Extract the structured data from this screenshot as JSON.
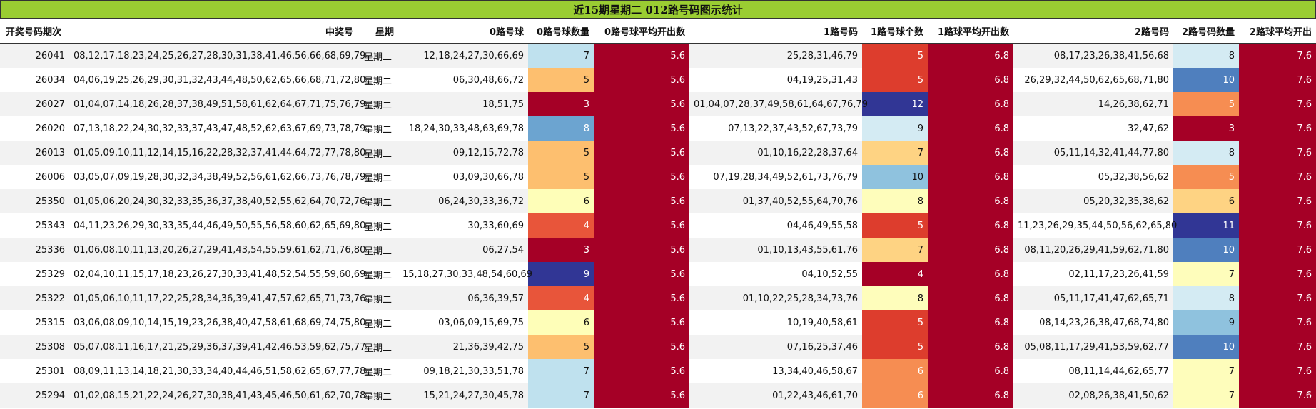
{
  "title": "近15期星期二 012路号码图示统计",
  "headers": [
    "开奖号码期次",
    "中奖号",
    "星期",
    "0路号球",
    "0路号球数量",
    "0路号球平均开出数",
    "1路号码",
    "1路号球个数",
    "1路球平均开出数",
    "2路号码",
    "2路号码数量",
    "2路球平均开出"
  ],
  "rows": [
    {
      "period": "26041",
      "numbers": "08,12,17,18,23,24,25,26,27,28,30,31,38,41,46,56,66,68,69,79",
      "weekday": "星期二",
      "r0": "12,18,24,27,30,66,69",
      "c0": 7,
      "a0": "5.6",
      "r1": "25,28,31,46,79",
      "c1": 5,
      "a1": "6.8",
      "r2": "08,17,23,26,38,41,56,68",
      "c2": 8,
      "a2": "7.6"
    },
    {
      "period": "26034",
      "numbers": "04,06,19,25,26,29,30,31,32,43,44,48,50,62,65,66,68,71,72,80",
      "weekday": "星期二",
      "r0": "06,30,48,66,72",
      "c0": 5,
      "a0": "5.6",
      "r1": "04,19,25,31,43",
      "c1": 5,
      "a1": "6.8",
      "r2": "26,29,32,44,50,62,65,68,71,80",
      "c2": 10,
      "a2": "7.6"
    },
    {
      "period": "26027",
      "numbers": "01,04,07,14,18,26,28,37,38,49,51,58,61,62,64,67,71,75,76,79",
      "weekday": "星期二",
      "r0": "18,51,75",
      "c0": 3,
      "a0": "5.6",
      "r1": "01,04,07,28,37,49,58,61,64,67,76,79",
      "c1": 12,
      "a1": "6.8",
      "r2": "14,26,38,62,71",
      "c2": 5,
      "a2": "7.6"
    },
    {
      "period": "26020",
      "numbers": "07,13,18,22,24,30,32,33,37,43,47,48,52,62,63,67,69,73,78,79",
      "weekday": "星期二",
      "r0": "18,24,30,33,48,63,69,78",
      "c0": 8,
      "a0": "5.6",
      "r1": "07,13,22,37,43,52,67,73,79",
      "c1": 9,
      "a1": "6.8",
      "r2": "32,47,62",
      "c2": 3,
      "a2": "7.6"
    },
    {
      "period": "26013",
      "numbers": "01,05,09,10,11,12,14,15,16,22,28,32,37,41,44,64,72,77,78,80",
      "weekday": "星期二",
      "r0": "09,12,15,72,78",
      "c0": 5,
      "a0": "5.6",
      "r1": "01,10,16,22,28,37,64",
      "c1": 7,
      "a1": "6.8",
      "r2": "05,11,14,32,41,44,77,80",
      "c2": 8,
      "a2": "7.6"
    },
    {
      "period": "26006",
      "numbers": "03,05,07,09,19,28,30,32,34,38,49,52,56,61,62,66,73,76,78,79",
      "weekday": "星期二",
      "r0": "03,09,30,66,78",
      "c0": 5,
      "a0": "5.6",
      "r1": "07,19,28,34,49,52,61,73,76,79",
      "c1": 10,
      "a1": "6.8",
      "r2": "05,32,38,56,62",
      "c2": 5,
      "a2": "7.6"
    },
    {
      "period": "25350",
      "numbers": "01,05,06,20,24,30,32,33,35,36,37,38,40,52,55,62,64,70,72,76",
      "weekday": "星期二",
      "r0": "06,24,30,33,36,72",
      "c0": 6,
      "a0": "5.6",
      "r1": "01,37,40,52,55,64,70,76",
      "c1": 8,
      "a1": "6.8",
      "r2": "05,20,32,35,38,62",
      "c2": 6,
      "a2": "7.6"
    },
    {
      "period": "25343",
      "numbers": "04,11,23,26,29,30,33,35,44,46,49,50,55,56,58,60,62,65,69,80",
      "weekday": "星期二",
      "r0": "30,33,60,69",
      "c0": 4,
      "a0": "5.6",
      "r1": "04,46,49,55,58",
      "c1": 5,
      "a1": "6.8",
      "r2": "11,23,26,29,35,44,50,56,62,65,80",
      "c2": 11,
      "a2": "7.6"
    },
    {
      "period": "25336",
      "numbers": "01,06,08,10,11,13,20,26,27,29,41,43,54,55,59,61,62,71,76,80",
      "weekday": "星期二",
      "r0": "06,27,54",
      "c0": 3,
      "a0": "5.6",
      "r1": "01,10,13,43,55,61,76",
      "c1": 7,
      "a1": "6.8",
      "r2": "08,11,20,26,29,41,59,62,71,80",
      "c2": 10,
      "a2": "7.6"
    },
    {
      "period": "25329",
      "numbers": "02,04,10,11,15,17,18,23,26,27,30,33,41,48,52,54,55,59,60,69",
      "weekday": "星期二",
      "r0": "15,18,27,30,33,48,54,60,69",
      "c0": 9,
      "a0": "5.6",
      "r1": "04,10,52,55",
      "c1": 4,
      "a1": "6.8",
      "r2": "02,11,17,23,26,41,59",
      "c2": 7,
      "a2": "7.6"
    },
    {
      "period": "25322",
      "numbers": "01,05,06,10,11,17,22,25,28,34,36,39,41,47,57,62,65,71,73,76",
      "weekday": "星期二",
      "r0": "06,36,39,57",
      "c0": 4,
      "a0": "5.6",
      "r1": "01,10,22,25,28,34,73,76",
      "c1": 8,
      "a1": "6.8",
      "r2": "05,11,17,41,47,62,65,71",
      "c2": 8,
      "a2": "7.6"
    },
    {
      "period": "25315",
      "numbers": "03,06,08,09,10,14,15,19,23,26,38,40,47,58,61,68,69,74,75,80",
      "weekday": "星期二",
      "r0": "03,06,09,15,69,75",
      "c0": 6,
      "a0": "5.6",
      "r1": "10,19,40,58,61",
      "c1": 5,
      "a1": "6.8",
      "r2": "08,14,23,26,38,47,68,74,80",
      "c2": 9,
      "a2": "7.6"
    },
    {
      "period": "25308",
      "numbers": "05,07,08,11,16,17,21,25,29,36,37,39,41,42,46,53,59,62,75,77",
      "weekday": "星期二",
      "r0": "21,36,39,42,75",
      "c0": 5,
      "a0": "5.6",
      "r1": "07,16,25,37,46",
      "c1": 5,
      "a1": "6.8",
      "r2": "05,08,11,17,29,41,53,59,62,77",
      "c2": 10,
      "a2": "7.6"
    },
    {
      "period": "25301",
      "numbers": "08,09,11,13,14,18,21,30,33,34,40,44,46,51,58,62,65,67,77,78",
      "weekday": "星期二",
      "r0": "09,18,21,30,33,51,78",
      "c0": 7,
      "a0": "5.6",
      "r1": "13,34,40,46,58,67",
      "c1": 6,
      "a1": "6.8",
      "r2": "08,11,14,44,62,65,77",
      "c2": 7,
      "a2": "7.6"
    },
    {
      "period": "25294",
      "numbers": "01,02,08,15,21,22,24,26,27,30,38,41,43,45,46,50,61,62,70,78",
      "weekday": "星期二",
      "r0": "15,21,24,27,30,45,78",
      "c0": 7,
      "a0": "5.6",
      "r1": "01,22,43,46,61,70",
      "c1": 6,
      "a1": "6.8",
      "r2": "02,08,26,38,41,50,62",
      "c2": 7,
      "a2": "7.6"
    }
  ],
  "colors": {
    "title_bg": "#9acd32",
    "avg_bg": "#a50026",
    "count_scale": {
      "3": "#a50026",
      "4": "#e8553a",
      "5": "#fdbf6f",
      "6": "#fefeb8",
      "7": "#bfe1ee",
      "8": "#6ca4d0",
      "9": "#313695"
    },
    "count_scale_r1": {
      "4": "#a50026",
      "5": "#dd3d2d",
      "6": "#f68d52",
      "7": "#fed383",
      "8": "#fefdbb",
      "9": "#d4ebf3",
      "10": "#8fc2de",
      "12": "#313695"
    },
    "count_scale_r2": {
      "3": "#a50026",
      "5": "#f68d52",
      "6": "#fed383",
      "7": "#fefdbb",
      "8": "#d4ebf3",
      "9": "#8fc2de",
      "10": "#4f7fbe",
      "11": "#313695"
    }
  }
}
